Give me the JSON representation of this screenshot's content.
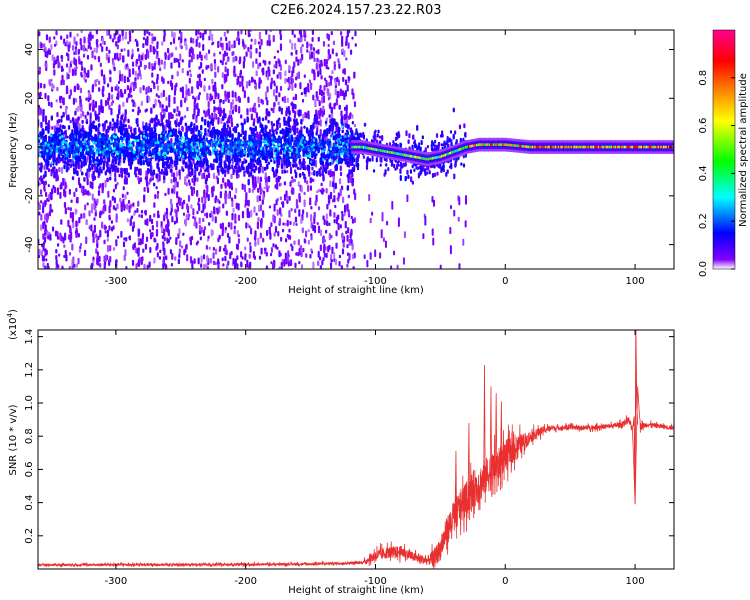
{
  "title": "C2E6.2024.157.23.22.R03",
  "chart_data": [
    {
      "type": "heatmap",
      "xlabel": "Height of straight line (km)",
      "ylabel": "Frequency (Hz)",
      "xlim": [
        -360,
        130
      ],
      "ylim": [
        -50,
        48
      ],
      "x_ticks": [
        -300,
        -200,
        -100,
        0,
        100
      ],
      "y_ticks": [
        -40,
        -20,
        0,
        20,
        40
      ],
      "colorbar": {
        "label": "Normalized spectral amplitude",
        "range": [
          0,
          1
        ],
        "ticks": [
          "0.0",
          "0.2",
          "0.4",
          "0.6",
          "0.8"
        ],
        "tick_values": [
          0.0,
          0.2,
          0.4,
          0.6,
          0.8
        ],
        "colors": [
          "#ffffff",
          "#6000ff",
          "#0000ff",
          "#00ffff",
          "#00ff00",
          "#ffff00",
          "#ff8000",
          "#ff0000",
          "#ff0090"
        ]
      },
      "ridge": {
        "x": [
          -360,
          -120,
          -110,
          -100,
          -90,
          -80,
          -70,
          -60,
          -50,
          -40,
          -30,
          -20,
          -10,
          0,
          10,
          20,
          40,
          60,
          80,
          100,
          130
        ],
        "frequency": [
          0,
          0,
          0,
          -1,
          -2,
          -3,
          -4,
          -5,
          -4,
          -2,
          0,
          1,
          1,
          1,
          0.5,
          0,
          0,
          0,
          0,
          0,
          0
        ]
      },
      "regions": [
        {
          "x": [
            -360,
            -115
          ],
          "description": "noisy broadband scatter"
        },
        {
          "x": [
            -115,
            130
          ],
          "description": "narrow ridge"
        }
      ]
    },
    {
      "type": "line",
      "xlabel": "Height of straight line (km)",
      "ylabel": "SNR (10 * v/v)",
      "scale_label_prefix": "(x10",
      "scale_label_exp": "4",
      "scale_label_suffix": ")",
      "xlim": [
        -360,
        130
      ],
      "ylim": [
        0,
        14400
      ],
      "x_ticks": [
        -300,
        -200,
        -100,
        0,
        100
      ],
      "y_ticks": [
        2000,
        4000,
        6000,
        8000,
        10000,
        12000,
        14000
      ],
      "y_tick_labels": [
        "0.2",
        "0.4",
        "0.6",
        "0.8",
        "1.0",
        "1.2",
        "1.4"
      ],
      "series": [
        {
          "color": "#e83030",
          "x": [
            -360,
            -300,
            -250,
            -200,
            -150,
            -110,
            -100,
            -90,
            -80,
            -70,
            -60,
            -55,
            -50,
            -45,
            -40,
            -35,
            -30,
            -25,
            -20,
            -15,
            -10,
            -5,
            0,
            5,
            10,
            15,
            20,
            25,
            30,
            35,
            40,
            50,
            60,
            70,
            80,
            90,
            95,
            98,
            100,
            102,
            104,
            110,
            120,
            130
          ],
          "y": [
            250,
            260,
            260,
            270,
            300,
            380,
            800,
            1000,
            1050,
            700,
            500,
            700,
            1200,
            2300,
            3100,
            3700,
            4200,
            4800,
            5100,
            5600,
            5900,
            6300,
            6900,
            7100,
            7400,
            7700,
            8000,
            8200,
            8400,
            8500,
            8500,
            8550,
            8500,
            8550,
            8600,
            8700,
            9000,
            8400,
            4000,
            11000,
            8600,
            8700,
            8600,
            8500
          ],
          "noise": [
            100,
            100,
            100,
            100,
            100,
            100,
            500,
            500,
            500,
            400,
            400,
            700,
            1000,
            1200,
            1400,
            1500,
            1500,
            1600,
            1600,
            1600,
            1600,
            1400,
            1300,
            1200,
            1000,
            700,
            500,
            400,
            300,
            250,
            200,
            200,
            200,
            200,
            200,
            250,
            300,
            300,
            0,
            0,
            300,
            200,
            200,
            200
          ]
        }
      ]
    }
  ]
}
